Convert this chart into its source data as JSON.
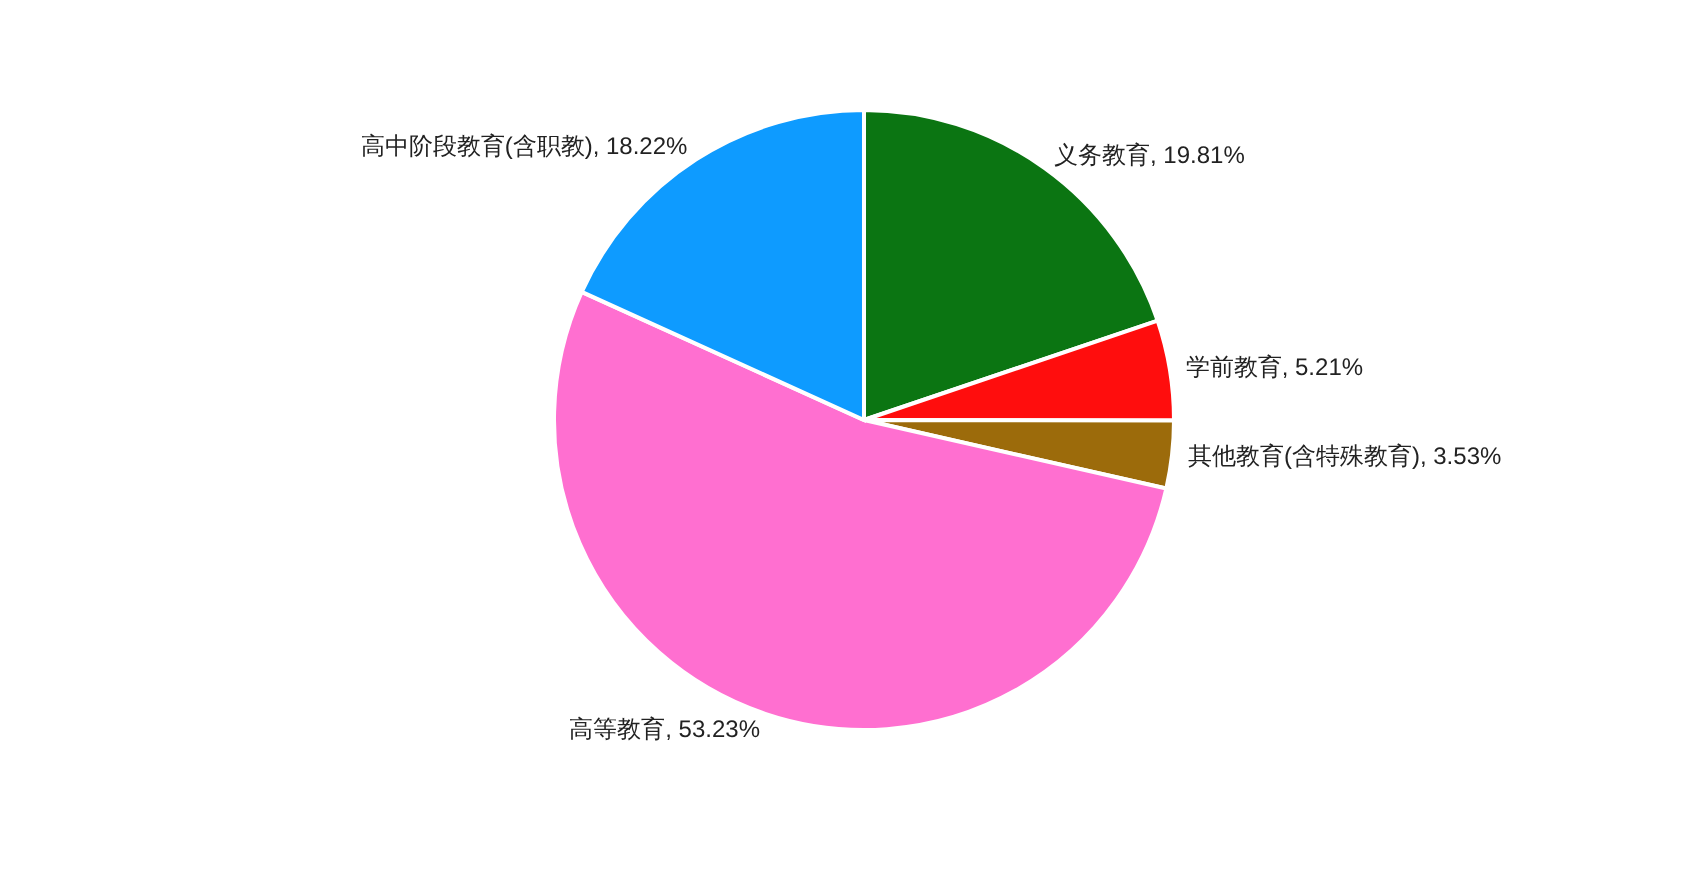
{
  "chart_data": {
    "type": "pie",
    "categories": [
      "义务教育",
      "学前教育",
      "其他教育(含特殊教育)",
      "高等教育",
      "高中阶段教育(含职教)"
    ],
    "values": [
      19.81,
      5.21,
      3.53,
      53.23,
      18.22
    ],
    "colors": [
      "#0b7512",
      "#ff0d0d",
      "#9c6b0b",
      "#ff6fd0",
      "#0e9bff"
    ],
    "value_labels": [
      ", 19.81%",
      ", 5.21%",
      ", 3.53%",
      ", 53.23%",
      ", 18.22%"
    ],
    "legend": false
  }
}
